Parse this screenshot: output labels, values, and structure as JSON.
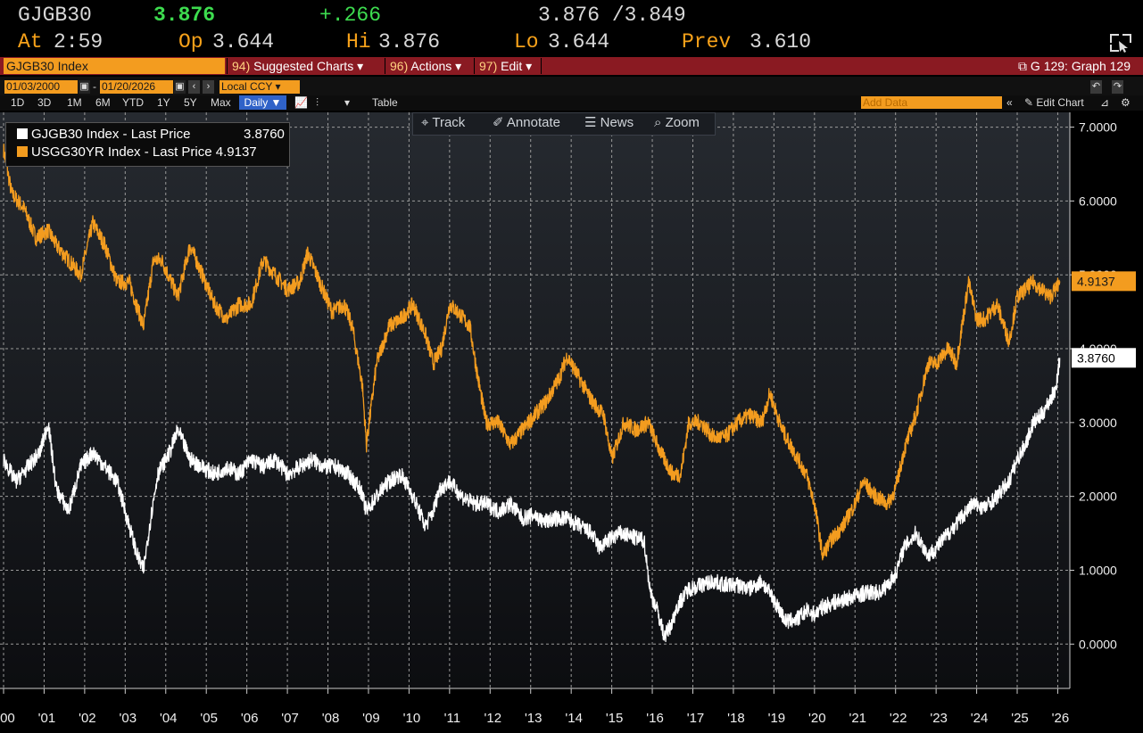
{
  "quote": {
    "ticker": "GJGB30",
    "last": "3.876",
    "change": "+.266",
    "bid_ask": "3.876 /3.849",
    "time_label": "At",
    "time": "2:59",
    "open_label": "Op",
    "open": "3.644",
    "high_label": "Hi",
    "high": "3.876",
    "low_label": "Lo",
    "low": "3.644",
    "prev_label": "Prev",
    "prev": "3.610"
  },
  "menubar": {
    "security": "GJGB30 Index",
    "suggested_num": "94)",
    "suggested": "Suggested Charts",
    "actions_num": "96)",
    "actions": "Actions",
    "edit_num": "97)",
    "edit": "Edit",
    "graph": "G 129: Graph 129"
  },
  "controls": {
    "start_date": "01/03/2000",
    "end_date": "01/20/2026",
    "currency": "Local CCY",
    "periods": [
      "1D",
      "3D",
      "1M",
      "6M",
      "YTD",
      "1Y",
      "5Y",
      "Max"
    ],
    "frequency": "Daily",
    "table": "Table",
    "add_data_placeholder": "Add Data",
    "edit_chart": "Edit Chart"
  },
  "toolbar": {
    "track": "Track",
    "annotate": "Annotate",
    "news": "News",
    "zoom": "Zoom"
  },
  "colors": {
    "series1": "#ffffff",
    "series2": "#f39c1f",
    "grid": "#9a9a9a",
    "menubar": "#8a1a22",
    "accent": "#f39c1f"
  },
  "chart_data": {
    "type": "line",
    "title": "",
    "xlabel": "",
    "ylabel": "",
    "xlim": [
      2000.0,
      2026.1
    ],
    "ylim": [
      -0.6,
      7.2
    ],
    "x_ticks": [
      "'00",
      "'01",
      "'02",
      "'03",
      "'04",
      "'05",
      "'06",
      "'07",
      "'08",
      "'09",
      "'10",
      "'11",
      "'12",
      "'13",
      "'14",
      "'15",
      "'16",
      "'17",
      "'18",
      "'19",
      "'20",
      "'21",
      "'22",
      "'23",
      "'24",
      "'25",
      "'26"
    ],
    "y_ticks": [
      "0.0000",
      "1.0000",
      "2.0000",
      "3.0000",
      "4.0000",
      "5.0000",
      "6.0000",
      "7.0000"
    ],
    "grid": true,
    "legend_position": "top-left",
    "series": [
      {
        "name": "GJGB30 Index - Last Price",
        "last": "3.8760",
        "color": "#ffffff",
        "x": [
          2000.0,
          2000.3,
          2000.6,
          2000.9,
          2001.1,
          2001.3,
          2001.6,
          2001.9,
          2002.2,
          2002.5,
          2002.8,
          2003.0,
          2003.3,
          2003.45,
          2003.6,
          2003.8,
          2004.1,
          2004.3,
          2004.6,
          2004.9,
          2005.2,
          2005.5,
          2005.8,
          2006.1,
          2006.4,
          2006.7,
          2007.0,
          2007.3,
          2007.6,
          2007.9,
          2008.2,
          2008.5,
          2008.8,
          2008.95,
          2009.2,
          2009.5,
          2009.8,
          2010.1,
          2010.4,
          2010.6,
          2010.75,
          2011.0,
          2011.3,
          2011.6,
          2011.9,
          2012.2,
          2012.5,
          2012.8,
          2013.1,
          2013.3,
          2013.6,
          2013.9,
          2014.2,
          2014.5,
          2014.7,
          2014.9,
          2015.2,
          2015.5,
          2015.8,
          2015.95,
          2016.1,
          2016.3,
          2016.5,
          2016.6,
          2016.9,
          2017.2,
          2017.5,
          2017.8,
          2018.1,
          2018.4,
          2018.7,
          2019.0,
          2019.3,
          2019.6,
          2019.8,
          2020.0,
          2020.2,
          2020.4,
          2020.7,
          2021.0,
          2021.3,
          2021.6,
          2021.8,
          2022.0,
          2022.2,
          2022.5,
          2022.8,
          2023.0,
          2023.3,
          2023.6,
          2023.9,
          2024.2,
          2024.5,
          2024.8,
          2025.0,
          2025.2,
          2025.4,
          2025.6,
          2025.8,
          2025.95,
          2026.05
        ],
        "y": [
          2.5,
          2.2,
          2.4,
          2.6,
          3.0,
          2.1,
          1.8,
          2.4,
          2.6,
          2.4,
          2.2,
          1.8,
          1.2,
          1.0,
          1.6,
          2.3,
          2.6,
          2.9,
          2.5,
          2.4,
          2.3,
          2.4,
          2.3,
          2.5,
          2.4,
          2.5,
          2.3,
          2.4,
          2.5,
          2.4,
          2.4,
          2.3,
          2.1,
          1.8,
          2.0,
          2.2,
          2.3,
          2.0,
          1.6,
          1.8,
          2.1,
          2.2,
          2.0,
          1.9,
          1.9,
          1.8,
          1.9,
          1.7,
          1.75,
          1.65,
          1.7,
          1.7,
          1.6,
          1.5,
          1.3,
          1.4,
          1.5,
          1.45,
          1.4,
          0.7,
          0.5,
          0.1,
          0.3,
          0.5,
          0.75,
          0.8,
          0.85,
          0.8,
          0.8,
          0.75,
          0.85,
          0.6,
          0.3,
          0.35,
          0.45,
          0.4,
          0.5,
          0.55,
          0.6,
          0.65,
          0.7,
          0.7,
          0.8,
          0.95,
          1.3,
          1.5,
          1.2,
          1.3,
          1.5,
          1.7,
          1.9,
          1.85,
          2.0,
          2.2,
          2.5,
          2.7,
          3.0,
          3.1,
          3.3,
          3.45,
          3.876
        ]
      },
      {
        "name": "USGG30YR Index - Last Price",
        "last": "4.9137",
        "color": "#f39c1f",
        "x": [
          2000.0,
          2000.2,
          2000.5,
          2000.8,
          2001.1,
          2001.3,
          2001.6,
          2001.9,
          2002.2,
          2002.5,
          2002.8,
          2003.1,
          2003.45,
          2003.7,
          2003.9,
          2004.3,
          2004.6,
          2004.9,
          2005.2,
          2005.5,
          2005.8,
          2006.1,
          2006.4,
          2006.7,
          2007.0,
          2007.3,
          2007.5,
          2007.8,
          2008.1,
          2008.4,
          2008.6,
          2008.85,
          2008.95,
          2009.2,
          2009.5,
          2009.8,
          2010.1,
          2010.4,
          2010.6,
          2010.8,
          2011.0,
          2011.2,
          2011.5,
          2011.7,
          2011.9,
          2012.2,
          2012.5,
          2012.8,
          2013.1,
          2013.4,
          2013.7,
          2013.9,
          2014.2,
          2014.5,
          2014.8,
          2015.0,
          2015.3,
          2015.6,
          2015.9,
          2016.2,
          2016.5,
          2016.7,
          2016.9,
          2017.2,
          2017.5,
          2017.8,
          2018.1,
          2018.4,
          2018.7,
          2018.9,
          2019.2,
          2019.5,
          2019.8,
          2020.0,
          2020.2,
          2020.4,
          2020.7,
          2021.0,
          2021.2,
          2021.5,
          2021.8,
          2022.0,
          2022.2,
          2022.5,
          2022.8,
          2023.0,
          2023.3,
          2023.5,
          2023.8,
          2024.0,
          2024.2,
          2024.5,
          2024.8,
          2025.0,
          2025.2,
          2025.4,
          2025.6,
          2025.8,
          2026.0,
          2026.05
        ],
        "y": [
          6.7,
          6.1,
          5.9,
          5.5,
          5.6,
          5.4,
          5.2,
          5.0,
          5.7,
          5.4,
          4.9,
          4.9,
          4.3,
          5.2,
          5.2,
          4.7,
          5.4,
          5.0,
          4.6,
          4.4,
          4.6,
          4.6,
          5.2,
          5.0,
          4.8,
          4.9,
          5.3,
          4.9,
          4.5,
          4.6,
          4.3,
          3.5,
          2.7,
          3.8,
          4.3,
          4.4,
          4.6,
          4.2,
          3.8,
          4.0,
          4.6,
          4.5,
          4.3,
          3.6,
          3.0,
          3.0,
          2.7,
          2.9,
          3.1,
          3.3,
          3.6,
          3.9,
          3.6,
          3.3,
          3.1,
          2.5,
          3.0,
          2.9,
          3.0,
          2.6,
          2.3,
          2.3,
          3.0,
          3.0,
          2.8,
          2.8,
          3.0,
          3.1,
          3.0,
          3.4,
          2.9,
          2.6,
          2.3,
          1.9,
          1.2,
          1.4,
          1.6,
          1.9,
          2.2,
          2.0,
          1.9,
          2.1,
          2.6,
          3.1,
          3.8,
          3.8,
          4.0,
          3.8,
          4.9,
          4.4,
          4.4,
          4.6,
          4.1,
          4.7,
          4.8,
          4.9,
          4.8,
          4.7,
          4.85,
          4.9137
        ]
      }
    ]
  }
}
